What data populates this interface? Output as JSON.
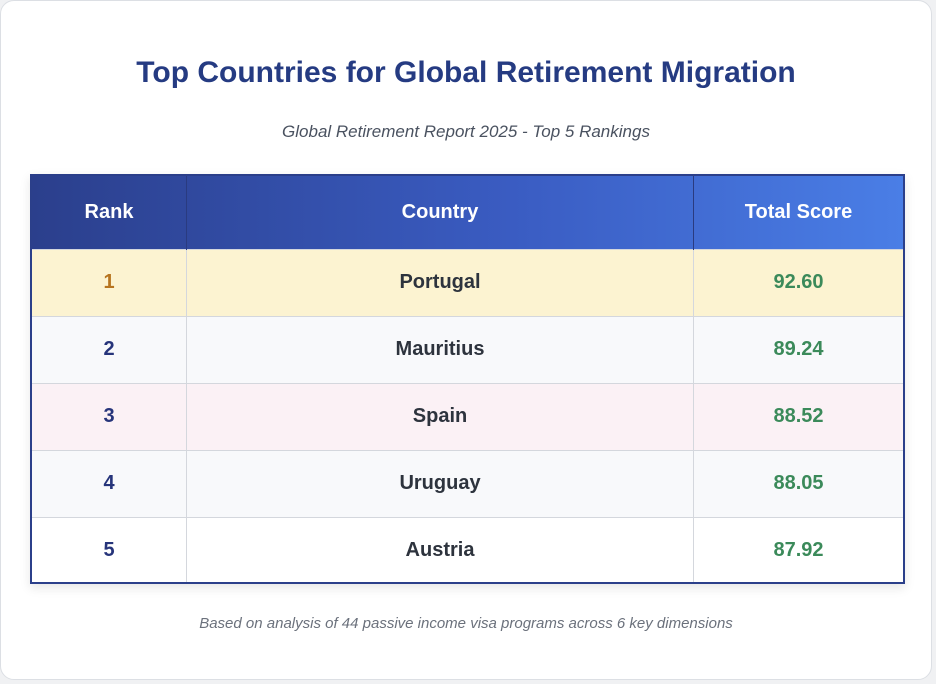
{
  "title": "Top Countries for Global Retirement Migration",
  "subtitle": "Global Retirement Report 2025 - Top 5 Rankings",
  "table": {
    "headers": {
      "rank": "Rank",
      "country": "Country",
      "score": "Total Score"
    },
    "rows": [
      {
        "rank": "1",
        "country": "Portugal",
        "score": "92.60"
      },
      {
        "rank": "2",
        "country": "Mauritius",
        "score": "89.24"
      },
      {
        "rank": "3",
        "country": "Spain",
        "score": "88.52"
      },
      {
        "rank": "4",
        "country": "Uruguay",
        "score": "88.05"
      },
      {
        "rank": "5",
        "country": "Austria",
        "score": "87.92"
      }
    ]
  },
  "footnote": "Based on analysis of 44 passive income visa programs across 6 key dimensions",
  "colors": {
    "title": "#253b82",
    "header_start": "#2b3f8c",
    "header_end": "#4a7ee6",
    "score": "#3b8a5a",
    "rank_first": "#b7741f",
    "row_first_bg": "#fcf3d1"
  }
}
